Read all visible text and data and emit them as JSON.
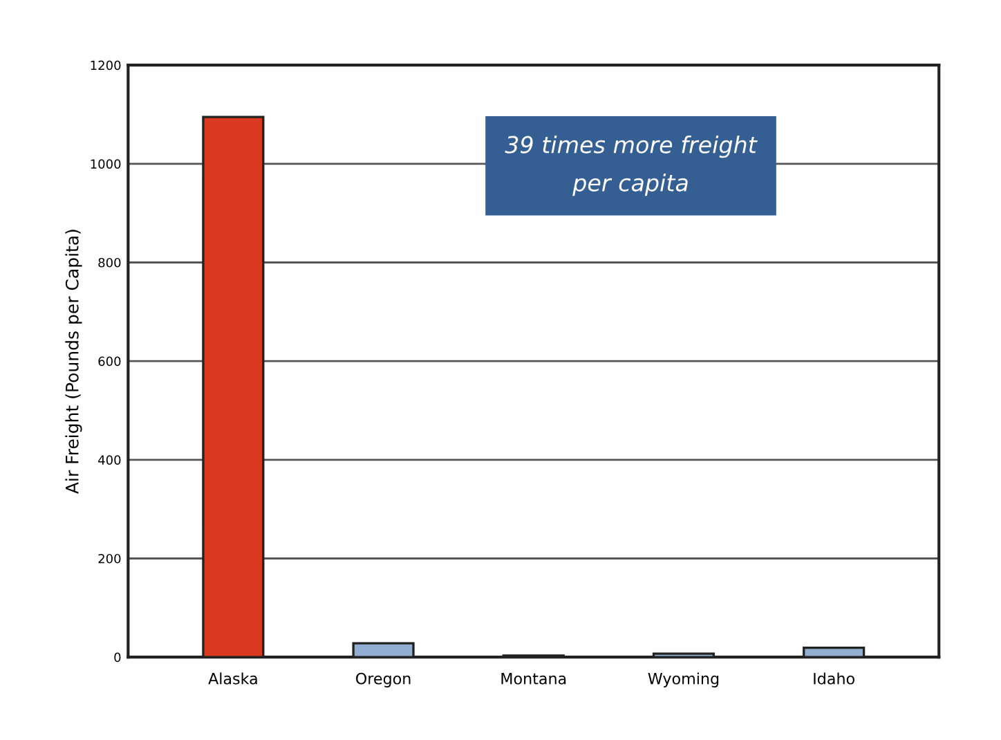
{
  "chart_data": {
    "type": "bar",
    "ylabel": "Air Freight (Pounds per Capita)",
    "categories": [
      "Alaska",
      "Oregon",
      "Montana",
      "Wyoming",
      "Idaho"
    ],
    "values": [
      1095,
      28,
      3,
      7,
      19
    ],
    "colors": [
      "#d9391e",
      "#92aed0",
      "#92aed0",
      "#92aed0",
      "#92aed0"
    ],
    "ylim": [
      0,
      1200
    ],
    "yticks": [
      0,
      200,
      400,
      600,
      800,
      1000,
      1200
    ],
    "grid": "y",
    "annotations": [
      "39 times more freight\nper capita"
    ]
  }
}
